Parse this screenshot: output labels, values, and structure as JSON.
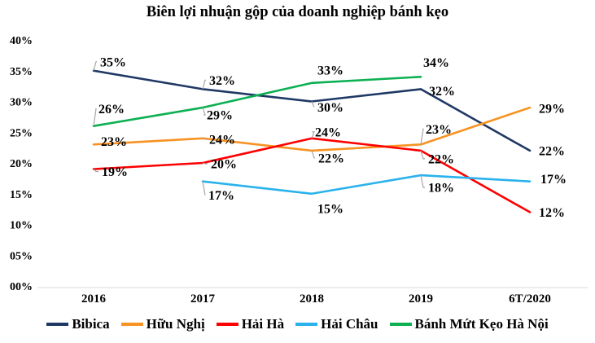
{
  "chart_data": {
    "type": "line",
    "title": "Biên lợi nhuận gộp của doanh nghiệp bánh kẹo",
    "categories": [
      "2016",
      "2017",
      "2018",
      "2019",
      "6T/2020"
    ],
    "y_axis": {
      "min": 0,
      "max": 40,
      "tick_step": 5,
      "tick_labels": [
        "00%",
        "05%",
        "10%",
        "15%",
        "20%",
        "25%",
        "30%",
        "35%",
        "40%"
      ]
    },
    "grid": false,
    "legend_position": "bottom",
    "background_color": "#FFFFFF",
    "axis_line_color": "#D9D9D9",
    "leader_line_color": "#A6A6A6",
    "text_color": "#000000",
    "series": [
      {
        "name": "Bibica",
        "color": "#1F3864",
        "values": [
          35,
          32,
          30,
          32,
          22
        ],
        "labels": [
          {
            "text": "35%",
            "dx": 24,
            "dy": -11,
            "leader": true
          },
          {
            "text": "32%",
            "dx": 24,
            "dy": -11,
            "leader": true
          },
          {
            "text": "30%",
            "dx": 23,
            "dy": 7,
            "leader": true
          },
          {
            "text": "32%",
            "dx": 26,
            "dy": 2,
            "leader": false
          },
          {
            "text": "22%",
            "dx": 27,
            "dy": 0,
            "leader": false
          }
        ]
      },
      {
        "name": "Hữu Nghị",
        "color": "#F79322",
        "values": [
          23,
          24,
          22,
          23,
          29
        ],
        "labels": [
          {
            "text": "23%",
            "dx": 25,
            "dy": -4,
            "leader": false
          },
          {
            "text": "24%",
            "dx": 24,
            "dy": 1,
            "leader": true
          },
          {
            "text": "22%",
            "dx": 24,
            "dy": 9,
            "leader": true
          },
          {
            "text": "23%",
            "dx": 22,
            "dy": -19,
            "leader": true
          },
          {
            "text": "29%",
            "dx": 27,
            "dy": 1,
            "leader": false
          }
        ]
      },
      {
        "name": "Hải Hà",
        "color": "#FE0000",
        "values": [
          19,
          20,
          24,
          22,
          12
        ],
        "labels": [
          {
            "text": "19%",
            "dx": 26,
            "dy": 3,
            "leader": true
          },
          {
            "text": "20%",
            "dx": 26,
            "dy": 1,
            "leader": true
          },
          {
            "text": "24%",
            "dx": 20,
            "dy": -8,
            "leader": true
          },
          {
            "text": "22%",
            "dx": 25,
            "dy": 10,
            "leader": true
          },
          {
            "text": "12%",
            "dx": 27,
            "dy": 0,
            "leader": false
          }
        ]
      },
      {
        "name": "Hải Châu",
        "color": "#29B2EC",
        "values": [
          null,
          17,
          15,
          18,
          17
        ],
        "labels": [
          null,
          {
            "text": "17%",
            "dx": 23,
            "dy": 17,
            "leader": true
          },
          {
            "text": "15%",
            "dx": 23,
            "dy": 18,
            "leader": false
          },
          {
            "text": "18%",
            "dx": 25,
            "dy": 15,
            "leader": true
          },
          {
            "text": "17%",
            "dx": 29,
            "dy": -3,
            "leader": false
          }
        ]
      },
      {
        "name": "Bánh Mứt Kẹo Hà Nội",
        "color": "#0CB052",
        "values": [
          26,
          29,
          33,
          34,
          null
        ],
        "labels": [
          {
            "text": "26%",
            "dx": 22,
            "dy": -21,
            "leader": true
          },
          {
            "text": "29%",
            "dx": 21,
            "dy": 9,
            "leader": true
          },
          {
            "text": "33%",
            "dx": 23,
            "dy": -16,
            "leader": false
          },
          {
            "text": "34%",
            "dx": 19,
            "dy": -18,
            "leader": false
          },
          null
        ]
      }
    ]
  }
}
